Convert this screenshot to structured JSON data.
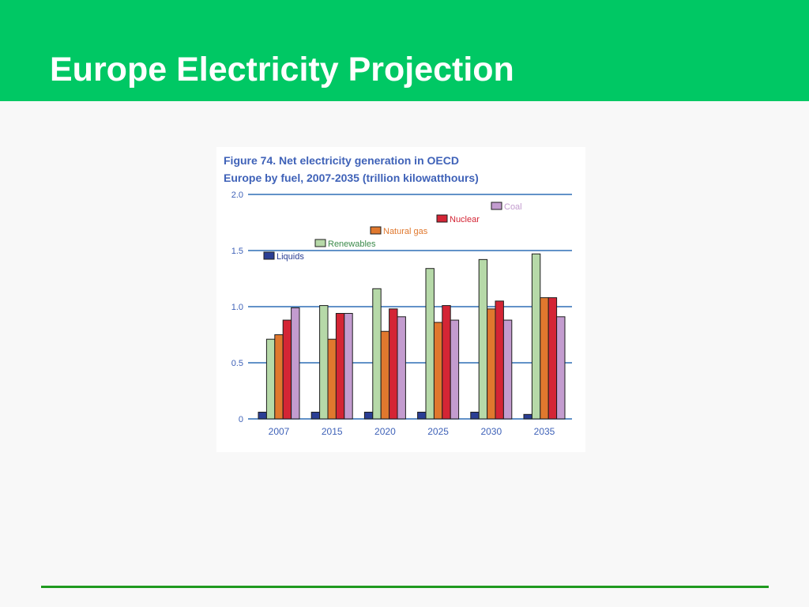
{
  "slide": {
    "title": "Europe Electricity Projection"
  },
  "figure": {
    "caption_line1": "Figure 74.  Net electricity generation in OECD",
    "caption_line2": "Europe by fuel, 2007-2035 (trillion kilowatthours)"
  },
  "colors": {
    "header": "#00c864",
    "footer_line": "#1f9a1f",
    "gridline": "#2f6fb5",
    "axis_text": "#3f62b8"
  },
  "chart_data": {
    "type": "bar",
    "title": "Figure 74.  Net electricity generation in OECD Europe by fuel, 2007-2035 (trillion kilowatthours)",
    "xlabel": "",
    "ylabel": "",
    "ylim": [
      0,
      2.0
    ],
    "yticks": [
      0,
      0.5,
      1.0,
      1.5,
      2.0
    ],
    "ytick_labels": [
      "0",
      "0.5",
      "1.0",
      "1.5",
      "2.0"
    ],
    "grid": true,
    "legend_placement": "staircase above bars, upper area",
    "categories": [
      "2007",
      "2015",
      "2020",
      "2025",
      "2030",
      "2035"
    ],
    "series": [
      {
        "name": "Liquids",
        "color": "#2a3e94",
        "values": [
          0.06,
          0.06,
          0.06,
          0.06,
          0.06,
          0.04
        ]
      },
      {
        "name": "Renewables",
        "color": "#b6d9a8",
        "values": [
          0.71,
          1.01,
          1.16,
          1.34,
          1.42,
          1.47
        ]
      },
      {
        "name": "Natural gas",
        "color": "#e0782e",
        "values": [
          0.75,
          0.71,
          0.78,
          0.86,
          0.98,
          1.08
        ]
      },
      {
        "name": "Nuclear",
        "color": "#d42535",
        "values": [
          0.88,
          0.94,
          0.98,
          1.01,
          1.05,
          1.08
        ]
      },
      {
        "name": "Coal",
        "color": "#c39ccf",
        "values": [
          0.99,
          0.94,
          0.91,
          0.88,
          0.88,
          0.91
        ]
      }
    ]
  }
}
